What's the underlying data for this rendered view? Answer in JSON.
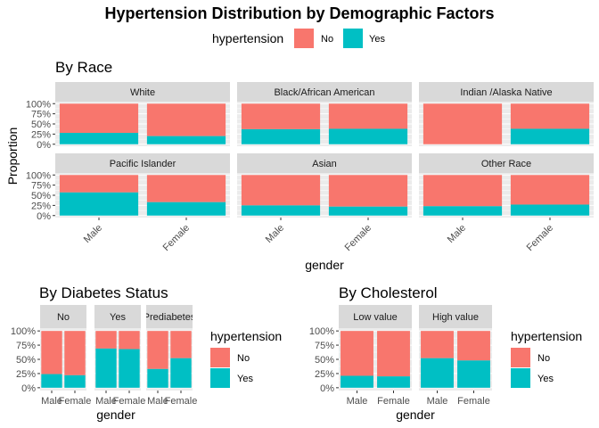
{
  "title": "Hypertension Distribution by Demographic Factors",
  "colors": {
    "no": "#F8766D",
    "yes": "#00BFC4",
    "panel_bg": "#EBEBEB",
    "strip_bg": "#D9D9D9",
    "grid": "#FFFFFF"
  },
  "top_legend": {
    "title": "hypertension",
    "items": [
      "No",
      "Yes"
    ]
  },
  "chart_data": [
    {
      "type": "bar",
      "stacked": true,
      "title": "By Race",
      "xlabel": "gender",
      "ylabel": "Proportion",
      "ylim": [
        0,
        1
      ],
      "yticks": [
        "0%",
        "25%",
        "50%",
        "75%",
        "100%"
      ],
      "categories": [
        "Male",
        "Female"
      ],
      "facets": [
        {
          "name": "White",
          "yes": [
            0.28,
            0.2
          ]
        },
        {
          "name": "Black/African American",
          "yes": [
            0.37,
            0.38
          ]
        },
        {
          "name": "Indian /Alaska Native",
          "yes": [
            0.0,
            0.38
          ]
        },
        {
          "name": "Pacific Islander",
          "yes": [
            0.57,
            0.33
          ]
        },
        {
          "name": "Asian",
          "yes": [
            0.25,
            0.22
          ]
        },
        {
          "name": "Other Race",
          "yes": [
            0.23,
            0.27
          ]
        }
      ],
      "series": [
        {
          "name": "No"
        },
        {
          "name": "Yes"
        }
      ]
    },
    {
      "type": "bar",
      "stacked": true,
      "title": "By Diabetes Status",
      "xlabel": "gender",
      "ylabel": "",
      "ylim": [
        0,
        1
      ],
      "yticks": [
        "0%",
        "25%",
        "50%",
        "75%",
        "100%"
      ],
      "categories": [
        "Male",
        "Female"
      ],
      "facets": [
        {
          "name": "No",
          "yes": [
            0.24,
            0.22
          ]
        },
        {
          "name": "Yes",
          "yes": [
            0.69,
            0.68
          ]
        },
        {
          "name": "Prediabetes",
          "yes": [
            0.33,
            0.52
          ]
        }
      ],
      "legend": {
        "title": "hypertension",
        "items": [
          "No",
          "Yes"
        ]
      }
    },
    {
      "type": "bar",
      "stacked": true,
      "title": "By Cholesterol",
      "xlabel": "gender",
      "ylabel": "",
      "ylim": [
        0,
        1
      ],
      "yticks": [
        "0%",
        "25%",
        "50%",
        "75%",
        "100%"
      ],
      "categories": [
        "Male",
        "Female"
      ],
      "facets": [
        {
          "name": "Low value",
          "yes": [
            0.21,
            0.2
          ]
        },
        {
          "name": "High value",
          "yes": [
            0.52,
            0.48
          ]
        }
      ],
      "legend": {
        "title": "hypertension",
        "items": [
          "No",
          "Yes"
        ]
      }
    }
  ]
}
